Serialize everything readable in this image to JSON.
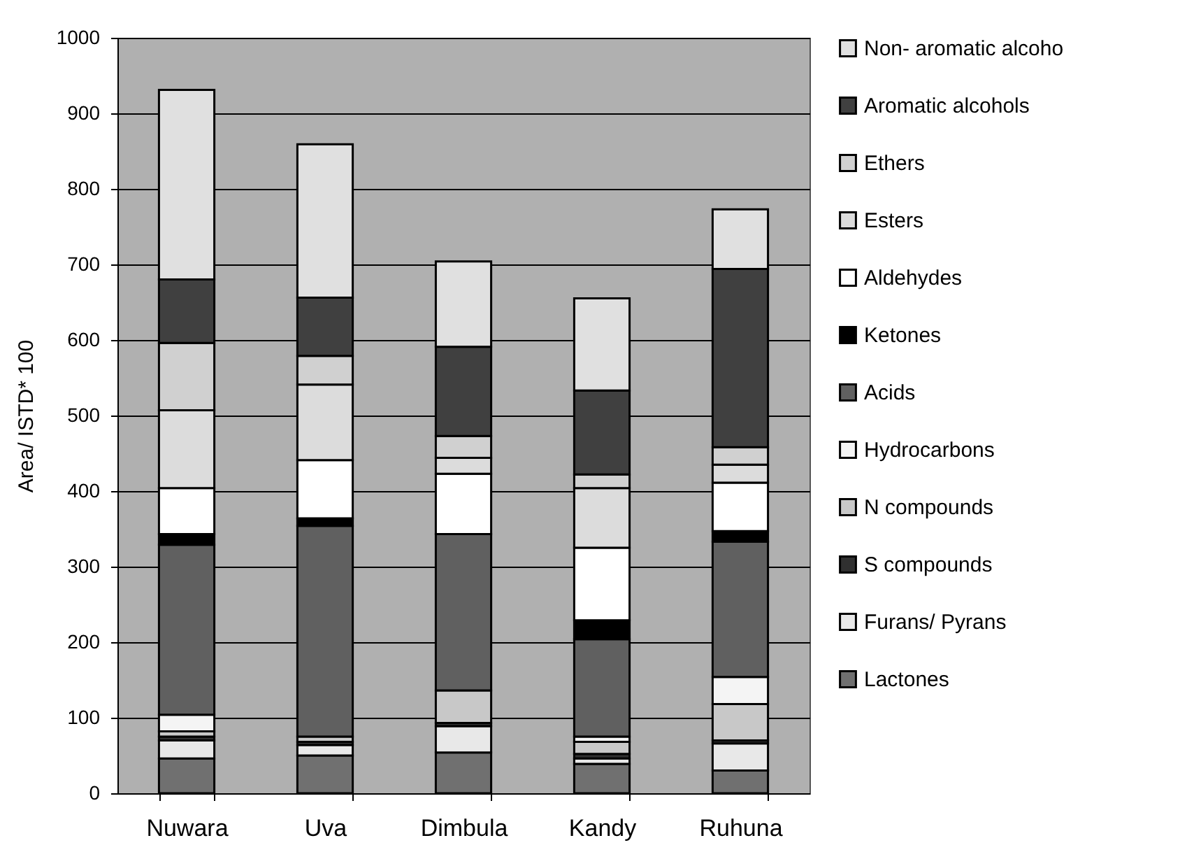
{
  "chart_data": {
    "type": "bar",
    "stacked": true,
    "ylabel": "Area/ ISTD* 100",
    "categories": [
      "Nuwara",
      "Uva",
      "Dimbula",
      "Kandy",
      "Ruhuna"
    ],
    "ylim": [
      0,
      1000
    ],
    "yticks": [
      0,
      100,
      200,
      300,
      400,
      500,
      600,
      700,
      800,
      900,
      1000
    ],
    "grid": "y",
    "legend": "right",
    "series": [
      {
        "name": "Lactones",
        "color": "#707070",
        "values": [
          46,
          50,
          54,
          39,
          30
        ]
      },
      {
        "name": "Furans/ Pyrans",
        "color": "#e8e8e8",
        "values": [
          24,
          14,
          35,
          7,
          36
        ]
      },
      {
        "name": "S compounds",
        "color": "#303030",
        "values": [
          5,
          4,
          4,
          6,
          4
        ]
      },
      {
        "name": "N compounds",
        "color": "#c8c8c8",
        "values": [
          7,
          7,
          43,
          16,
          48
        ]
      },
      {
        "name": "Hydrocarbons",
        "color": "#f4f4f4",
        "values": [
          22,
          null,
          null,
          7,
          36
        ]
      },
      {
        "name": "Acids",
        "color": "#606060",
        "values": [
          225,
          279,
          207,
          129,
          179
        ]
      },
      {
        "name": "Ketones",
        "color": "#000000",
        "values": [
          14,
          10,
          null,
          25,
          14
        ]
      },
      {
        "name": "Aldehydes",
        "color": "#ffffff",
        "values": [
          61,
          77,
          80,
          96,
          64
        ]
      },
      {
        "name": "Esters",
        "color": "#dcdcdc",
        "values": [
          103,
          100,
          21,
          79,
          24
        ]
      },
      {
        "name": "Ethers",
        "color": "#d0d0d0",
        "values": [
          89,
          38,
          29,
          18,
          23
        ]
      },
      {
        "name": "Aromatic alcohols",
        "color": "#404040",
        "values": [
          84,
          77,
          118,
          111,
          236
        ]
      },
      {
        "name": "Non- aromatic alcoho",
        "color": "#e0e0e0",
        "values": [
          251,
          203,
          113,
          122,
          79
        ]
      }
    ]
  }
}
